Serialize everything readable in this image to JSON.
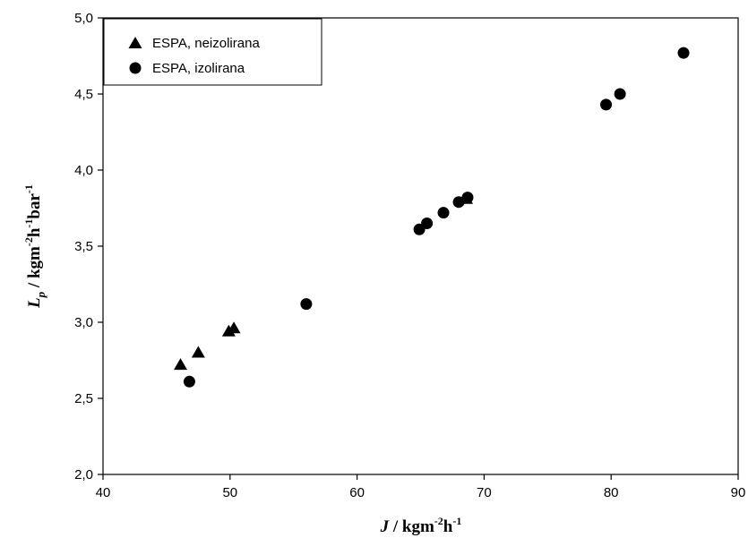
{
  "chart_data": {
    "type": "scatter",
    "xlim": [
      40,
      90
    ],
    "ylim": [
      2.0,
      5.0
    ],
    "x_ticks": [
      "40",
      "50",
      "60",
      "70",
      "80",
      "90"
    ],
    "y_ticks": [
      "2,0",
      "2,5",
      "3,0",
      "3,5",
      "4,0",
      "4,5",
      "5,0"
    ],
    "xlabel": {
      "main": "J",
      "rest": " / kgm",
      "sup1": "-2",
      "mid": "h",
      "sup2": "-1"
    },
    "ylabel": {
      "main": "L",
      "sub": "p",
      "rest": " / kgm",
      "sup1": "-2",
      "mid1": "h",
      "sup2": "-1",
      "mid2": "bar",
      "sup3": "-1"
    },
    "legend_position": "top-left",
    "grid": false,
    "series": [
      {
        "name": "ESPA, neizolirana",
        "marker": "triangle",
        "color": "#000000",
        "points": [
          [
            46.1,
            2.72
          ],
          [
            47.5,
            2.8
          ],
          [
            49.9,
            2.94
          ],
          [
            50.3,
            2.96
          ],
          [
            68.6,
            3.81
          ]
        ]
      },
      {
        "name": "ESPA, izolirana",
        "marker": "circle",
        "color": "#000000",
        "points": [
          [
            46.8,
            2.61
          ],
          [
            56.0,
            3.12
          ],
          [
            64.9,
            3.61
          ],
          [
            65.5,
            3.65
          ],
          [
            66.8,
            3.72
          ],
          [
            68.0,
            3.79
          ],
          [
            68.7,
            3.82
          ],
          [
            79.6,
            4.43
          ],
          [
            80.7,
            4.5
          ],
          [
            85.7,
            4.77
          ]
        ]
      }
    ]
  }
}
